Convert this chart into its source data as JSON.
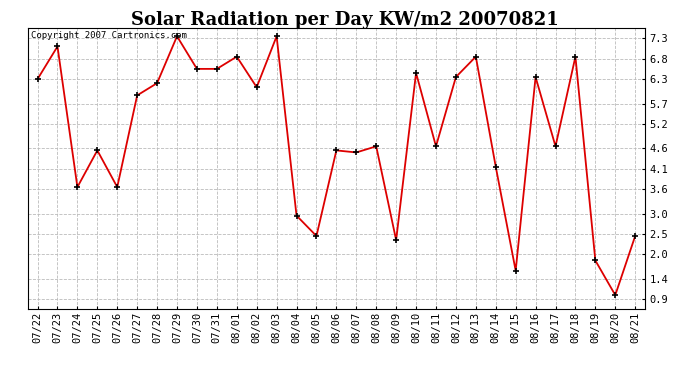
{
  "title": "Solar Radiation per Day KW/m2 20070821",
  "copyright_text": "Copyright 2007 Cartronics.com",
  "x_labels": [
    "07/22",
    "07/23",
    "07/24",
    "07/25",
    "07/26",
    "07/27",
    "07/28",
    "07/29",
    "07/30",
    "07/31",
    "08/01",
    "08/02",
    "08/03",
    "08/04",
    "08/05",
    "08/06",
    "08/07",
    "08/08",
    "08/09",
    "08/10",
    "08/11",
    "08/12",
    "08/13",
    "08/14",
    "08/15",
    "08/16",
    "08/17",
    "08/18",
    "08/19",
    "08/20",
    "08/21"
  ],
  "y_values": [
    6.3,
    7.1,
    3.65,
    4.55,
    3.65,
    5.9,
    6.2,
    7.35,
    6.55,
    6.55,
    6.85,
    6.1,
    7.35,
    2.95,
    2.45,
    4.55,
    4.5,
    4.65,
    2.35,
    6.45,
    4.65,
    6.35,
    6.85,
    4.15,
    1.6,
    6.35,
    4.65,
    6.85,
    1.85,
    1.0,
    2.45
  ],
  "line_color": "#dd0000",
  "marker_color": "#000000",
  "marker_face": "#dd0000",
  "bg_color": "#ffffff",
  "grid_color": "#bbbbbb",
  "yticks": [
    0.9,
    1.4,
    2.0,
    2.5,
    3.0,
    3.6,
    4.1,
    4.6,
    5.2,
    5.7,
    6.3,
    6.8,
    7.3
  ],
  "ymin": 0.65,
  "ymax": 7.55,
  "title_fontsize": 13,
  "tick_fontsize": 7.5,
  "copyright_fontsize": 6.5
}
